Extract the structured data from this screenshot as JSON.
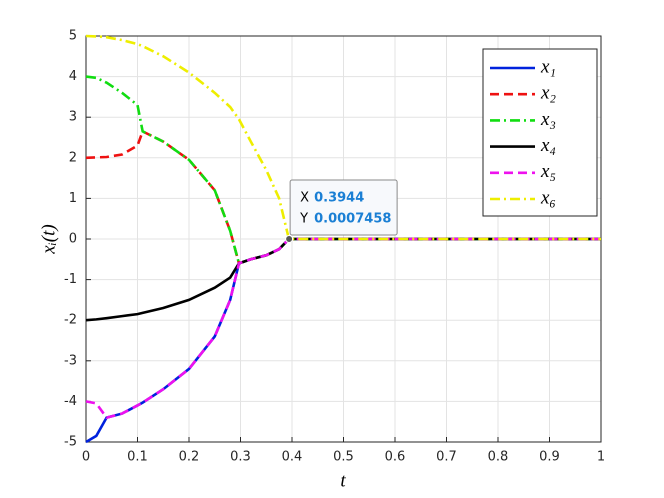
{
  "chart_data": {
    "type": "line",
    "xlabel": "t",
    "ylabel": "xᵢ(t)",
    "x": [
      0,
      0.02,
      0.04,
      0.07,
      0.1,
      0.11,
      0.15,
      0.2,
      0.25,
      0.28,
      0.297,
      0.32,
      0.35,
      0.375,
      0.394,
      0.5,
      0.6,
      0.7,
      0.8,
      0.9,
      1
    ],
    "series": [
      {
        "name": "x₁",
        "color": "#0022dd",
        "style": "solid",
        "values": [
          -5,
          -4.85,
          -4.4,
          -4.3,
          -4.1,
          -4.03,
          -3.7,
          -3.2,
          -2.4,
          -1.5,
          -0.6,
          -0.5,
          -0.4,
          -0.25,
          0,
          0,
          0,
          0,
          0,
          0,
          0
        ]
      },
      {
        "name": "x₂",
        "color": "#ee1111",
        "style": "dashed",
        "values": [
          2,
          2.01,
          2.02,
          2.08,
          2.3,
          2.65,
          2.4,
          1.95,
          1.2,
          0.2,
          -0.6,
          -0.5,
          -0.4,
          -0.25,
          0,
          0,
          0,
          0,
          0,
          0,
          0
        ]
      },
      {
        "name": "x₃",
        "color": "#11dd11",
        "style": "dashdot",
        "values": [
          4,
          3.97,
          3.85,
          3.6,
          3.3,
          2.65,
          2.4,
          1.95,
          1.2,
          0.2,
          -0.6,
          -0.5,
          -0.4,
          -0.25,
          0,
          0,
          0,
          0,
          0,
          0,
          0
        ]
      },
      {
        "name": "x₄",
        "color": "#000000",
        "style": "solid",
        "values": [
          -2,
          -1.98,
          -1.95,
          -1.9,
          -1.85,
          -1.82,
          -1.7,
          -1.5,
          -1.2,
          -0.95,
          -0.6,
          -0.5,
          -0.4,
          -0.25,
          0,
          0,
          0,
          0,
          0,
          0,
          0
        ]
      },
      {
        "name": "x₅",
        "color": "#ee11ee",
        "style": "dashed",
        "values": [
          -4,
          -4.05,
          -4.4,
          -4.3,
          -4.1,
          -4.03,
          -3.7,
          -3.2,
          -2.4,
          -1.5,
          -0.6,
          -0.5,
          -0.4,
          -0.25,
          0,
          0,
          0,
          0,
          0,
          0,
          0
        ]
      },
      {
        "name": "x₆",
        "color": "#eeee00",
        "style": "dashdot",
        "values": [
          5,
          4.99,
          4.97,
          4.9,
          4.8,
          4.75,
          4.5,
          4.1,
          3.6,
          3.25,
          2.95,
          2.4,
          1.7,
          1.0,
          0,
          0,
          0,
          0,
          0,
          0,
          0
        ]
      }
    ],
    "xlim": [
      0,
      1
    ],
    "xticks": [
      0,
      0.1,
      0.2,
      0.3,
      0.4,
      0.5,
      0.6,
      0.7,
      0.8,
      0.9,
      1
    ],
    "ylim": [
      -5,
      5
    ],
    "yticks": [
      -5,
      -4,
      -3,
      -2,
      -1,
      0,
      1,
      2,
      3,
      4,
      5
    ],
    "grid": true,
    "legend": "upper right",
    "datatip": {
      "x_name": "X",
      "x": 0.3944,
      "y_name": "Y",
      "y": 0.0007458
    }
  }
}
